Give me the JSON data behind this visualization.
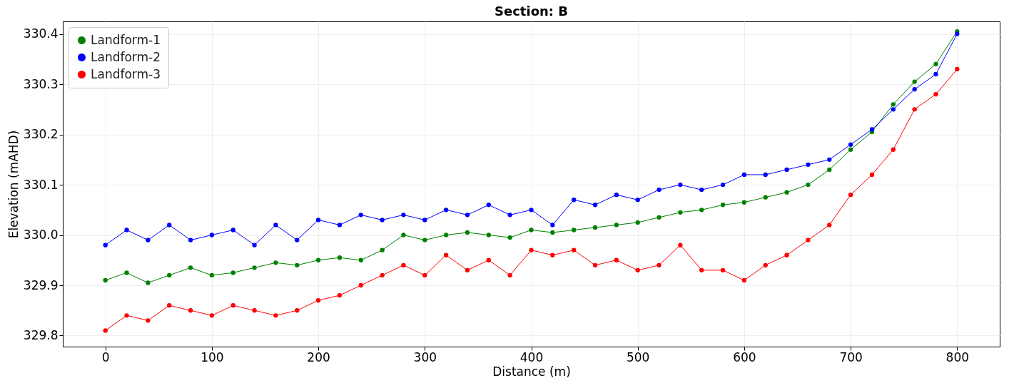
{
  "chart_data": {
    "type": "line",
    "title": "Section: B",
    "xlabel": "Distance (m)",
    "ylabel": "Elevation (mAHD)",
    "xlim": [
      -40,
      840
    ],
    "xticks": [
      0,
      100,
      200,
      300,
      400,
      500,
      600,
      700,
      800
    ],
    "ylim": [
      329.778,
      330.425
    ],
    "yticks": [
      329.8,
      329.9,
      {
        "value": 330,
        "label": "330.0"
      },
      330.1,
      330.2,
      330.3,
      330.4
    ],
    "x": [
      0,
      20,
      40,
      60,
      80,
      100,
      120,
      140,
      160,
      180,
      200,
      220,
      240,
      260,
      280,
      300,
      320,
      340,
      360,
      380,
      400,
      420,
      440,
      460,
      480,
      500,
      520,
      540,
      560,
      580,
      600,
      620,
      640,
      660,
      680,
      700,
      720,
      740,
      760,
      780,
      800
    ],
    "grid": true,
    "legend": "top left",
    "marker": "circle",
    "line_style": "solid",
    "series": [
      {
        "name": "Landform-1",
        "color": "#008000",
        "values": [
          329.91,
          329.925,
          329.905,
          329.92,
          329.935,
          329.92,
          329.925,
          329.935,
          329.945,
          329.94,
          329.95,
          329.955,
          329.95,
          329.97,
          330.0,
          329.99,
          330.0,
          330.005,
          330.0,
          329.995,
          330.01,
          330.005,
          330.01,
          330.015,
          330.02,
          330.025,
          330.035,
          330.045,
          330.05,
          330.06,
          330.065,
          330.075,
          330.085,
          330.1,
          330.13,
          330.17,
          330.205,
          330.26,
          330.305,
          330.34,
          330.405
        ]
      },
      {
        "name": "Landform-2",
        "color": "#0000ff",
        "values": [
          329.98,
          330.01,
          329.99,
          330.02,
          329.99,
          330.0,
          330.01,
          329.98,
          330.02,
          329.99,
          330.03,
          330.02,
          330.04,
          330.03,
          330.04,
          330.03,
          330.05,
          330.04,
          330.06,
          330.04,
          330.05,
          330.02,
          330.07,
          330.06,
          330.08,
          330.07,
          330.09,
          330.1,
          330.09,
          330.1,
          330.12,
          330.12,
          330.13,
          330.14,
          330.15,
          330.18,
          330.21,
          330.25,
          330.29,
          330.32,
          330.4
        ]
      },
      {
        "name": "Landform-3",
        "color": "#ff0000",
        "values": [
          329.81,
          329.84,
          329.83,
          329.86,
          329.85,
          329.84,
          329.86,
          329.85,
          329.84,
          329.85,
          329.87,
          329.88,
          329.9,
          329.92,
          329.94,
          329.92,
          329.96,
          329.93,
          329.95,
          329.92,
          329.97,
          329.96,
          329.97,
          329.94,
          329.95,
          329.93,
          329.94,
          329.98,
          329.93,
          329.93,
          329.91,
          329.94,
          329.96,
          329.99,
          330.02,
          330.08,
          330.12,
          330.17,
          330.25,
          330.28,
          330.33
        ]
      }
    ]
  }
}
